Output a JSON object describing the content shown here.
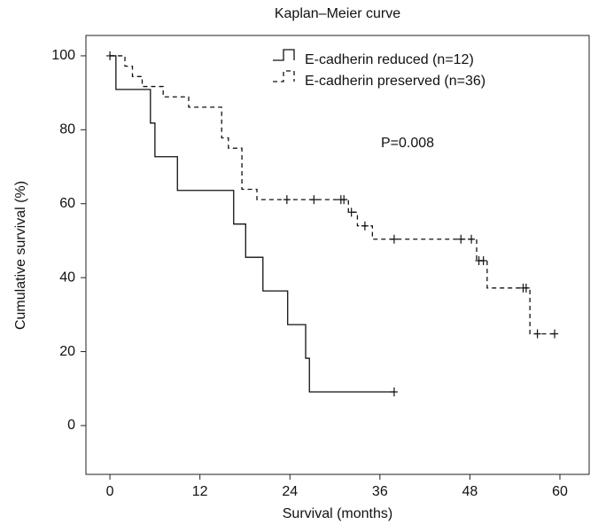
{
  "chart_data": {
    "type": "kaplan-meier",
    "title": "Kaplan–Meier curve",
    "x_label": "Survival (months)",
    "y_label": "Cumulative survival (%)",
    "annotation": "P=0.008",
    "xlim": [
      -3.2,
      63.9
    ],
    "ylim": [
      -13.2,
      105.5
    ],
    "xticks": [
      0,
      12,
      24,
      36,
      48,
      60
    ],
    "yticks": [
      0,
      20,
      40,
      60,
      80,
      100
    ],
    "legend": "upper-right",
    "series": [
      {
        "name": "E-cadherin reduced (n=12)",
        "color": "#111111",
        "dashed": false,
        "x": [
          0,
          0.8,
          5.4,
          6.0,
          9.0,
          16.5,
          18.1,
          20.4,
          23.7,
          26.1,
          26.6,
          37.9
        ],
        "values": [
          100,
          90.9,
          81.8,
          72.7,
          63.6,
          54.5,
          45.5,
          36.4,
          27.3,
          18.2,
          9.1,
          9.1
        ],
        "censored_x": [
          0,
          37.9
        ],
        "censored_values": [
          100,
          9.1
        ]
      },
      {
        "name": "E-cadherin preserved (n=36)",
        "color": "#111111",
        "dashed": true,
        "x": [
          0,
          2.0,
          3.0,
          4.3,
          7.1,
          10.5,
          14.9,
          15.8,
          17.6,
          19.6,
          31.8,
          33.0,
          35.0,
          48.9,
          50.3,
          56.0,
          59.3
        ],
        "values": [
          100,
          97.2,
          94.4,
          91.7,
          88.9,
          86.1,
          77.8,
          75.0,
          63.9,
          61.1,
          57.7,
          54.0,
          50.4,
          44.6,
          37.2,
          24.8,
          24.8
        ],
        "censored_x": [
          23.6,
          27.2,
          30.8,
          31.2,
          32.2,
          34.0,
          37.9,
          46.8,
          48.2,
          49.2,
          49.8,
          55.1,
          55.5,
          57.0,
          59.3
        ],
        "censored_values": [
          61.1,
          61.1,
          61.1,
          61.1,
          57.7,
          54.0,
          50.4,
          50.4,
          50.4,
          44.6,
          44.6,
          37.2,
          37.2,
          24.8,
          24.8
        ]
      }
    ]
  }
}
